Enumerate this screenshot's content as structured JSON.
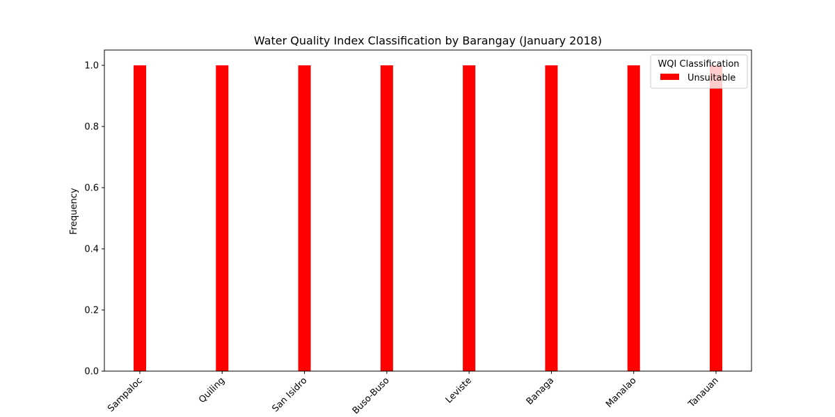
{
  "chart_data": {
    "type": "bar",
    "title": "Water Quality Index Classification by Barangay (January 2018)",
    "xlabel": "",
    "ylabel": "Frequency",
    "categories": [
      "Sampaloc",
      "Quiling",
      "San Isidro",
      "Buso-Buso",
      "Leviste",
      "Banaga",
      "Manalao",
      "Tanauan"
    ],
    "series": [
      {
        "name": "Unsuitable",
        "values": [
          1,
          1,
          1,
          1,
          1,
          1,
          1,
          1
        ],
        "color": "#ff0000"
      }
    ],
    "ylim": [
      0,
      1.05
    ],
    "yticks": [
      "0.0",
      "0.2",
      "0.4",
      "0.6",
      "0.8",
      "1.0"
    ],
    "grid": false,
    "legend": {
      "title": "WQI Classification",
      "placement": "top-right"
    }
  }
}
